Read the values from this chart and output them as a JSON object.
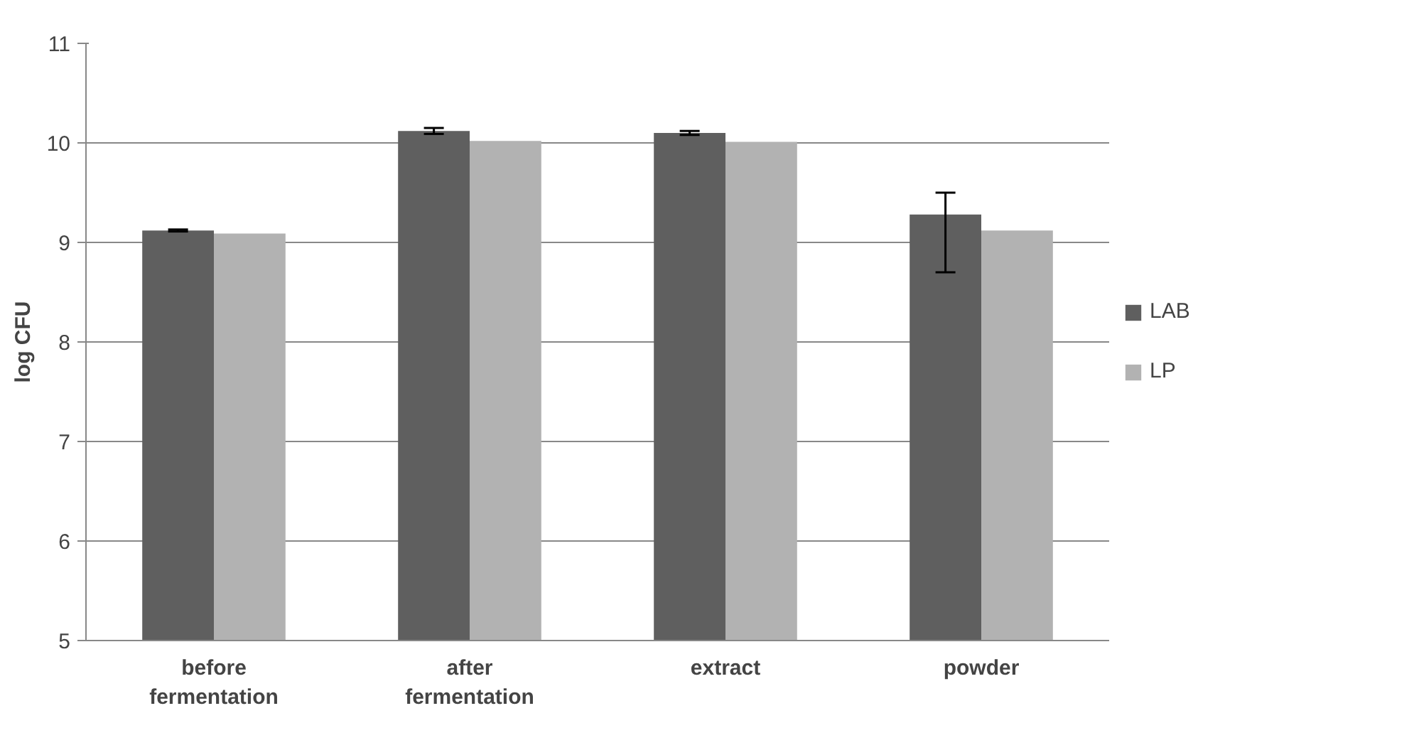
{
  "chart_data": {
    "type": "bar",
    "ylabel": "log CFU",
    "categories": [
      "before\nfermentation",
      "after\nfermentation",
      "extract",
      "powder"
    ],
    "series": [
      {
        "name": "LAB",
        "color": "#5f5f5f",
        "values": [
          9.12,
          10.12,
          10.1,
          9.28
        ],
        "errors": [
          0.01,
          0.03,
          0.02,
          [
            8.7,
            9.5
          ]
        ]
      },
      {
        "name": "LP",
        "color": "#b2b2b2",
        "values": [
          9.09,
          10.02,
          10.01,
          9.12
        ]
      }
    ],
    "ylim": [
      5,
      11
    ],
    "yticks": [
      5,
      6,
      7,
      8,
      9,
      10,
      11
    ],
    "grid": "y",
    "legend": "right"
  }
}
